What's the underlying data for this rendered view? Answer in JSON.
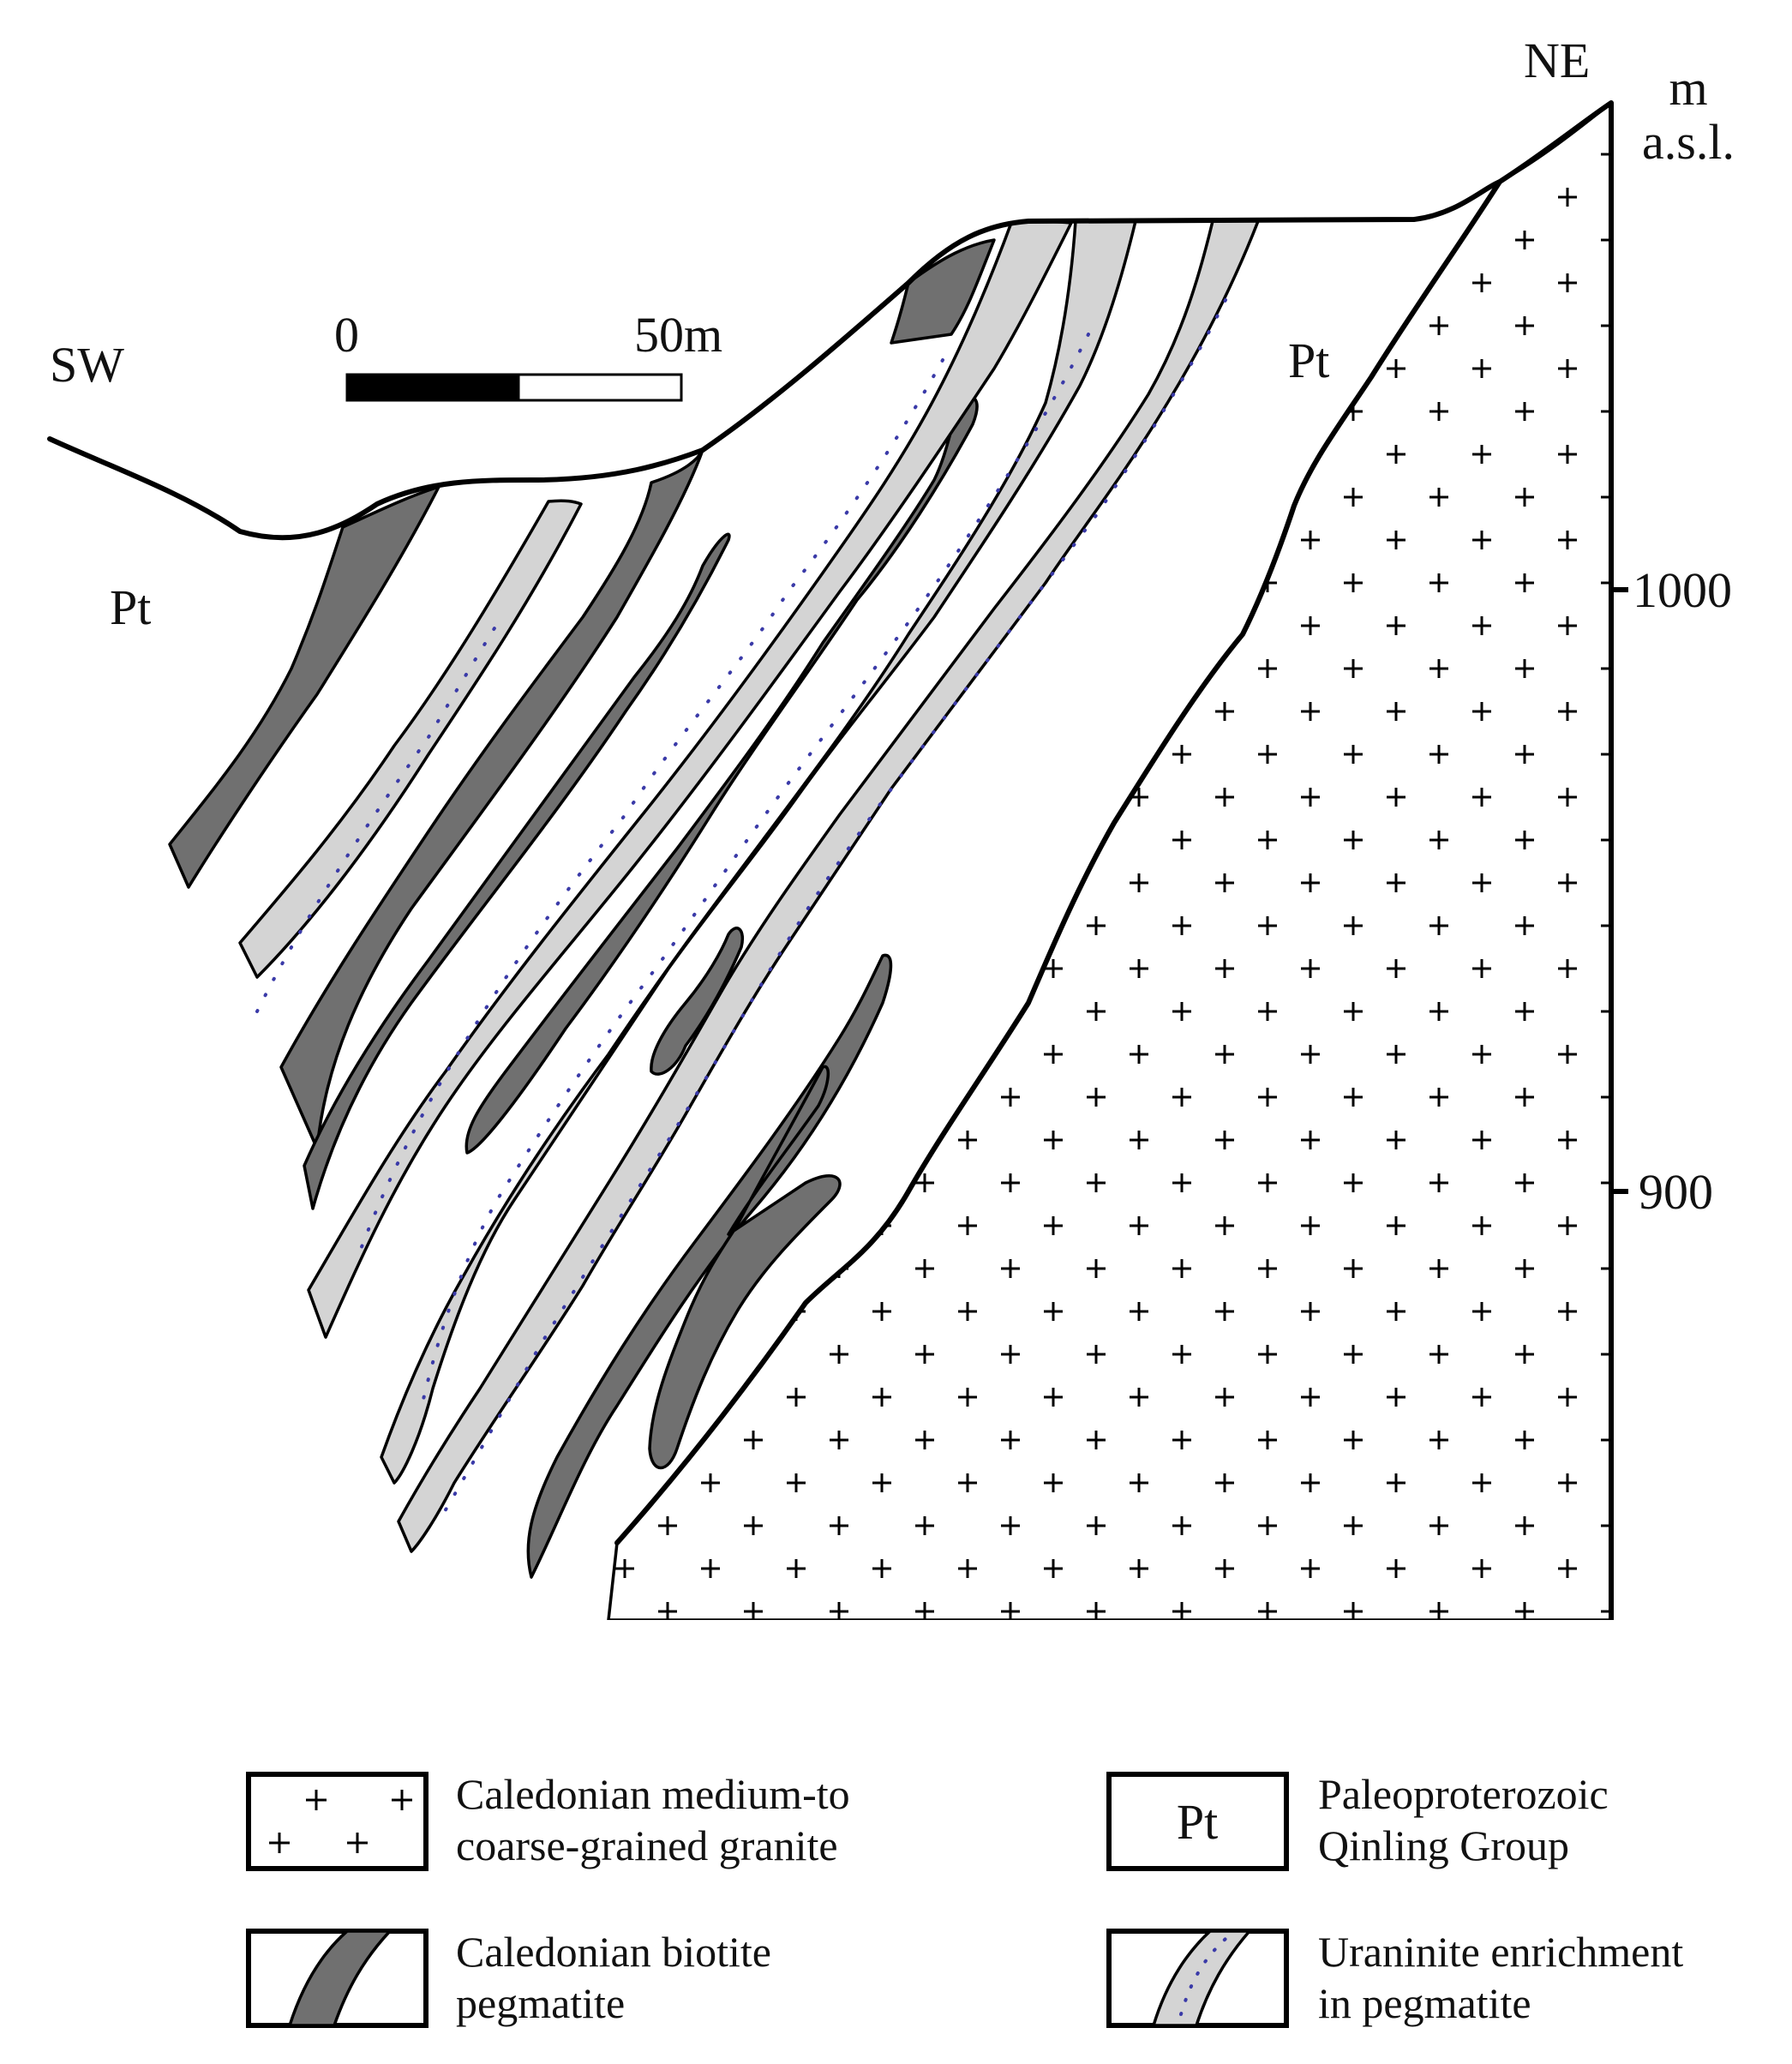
{
  "section": {
    "sw_label": "SW",
    "ne_label": "NE",
    "pt_label_left": "Pt",
    "pt_label_right": "Pt"
  },
  "scale_bar": {
    "start_label": "0",
    "end_label": "50m"
  },
  "elevation_axis": {
    "unit_line1": "m",
    "unit_line2": "a.s.l.",
    "ticks": [
      "1000",
      "900"
    ]
  },
  "legend": {
    "granite": {
      "symbol": "+ +",
      "line1": "Caledonian medium-to",
      "line2": "coarse-grained granite"
    },
    "qinling": {
      "symbol": "Pt",
      "line1": "Paleoproterozoic",
      "line2": "Qinling Group"
    },
    "pegmatite": {
      "line1": "Caledonian biotite",
      "line2": "pegmatite"
    },
    "uraninite": {
      "line1": "Uraninite enrichment",
      "line2": "in pegmatite"
    }
  },
  "colors": {
    "pegmatite_fill": "#707070",
    "uraninite_fill": "#d4d4d4",
    "uraninite_dots": "#3a3aa8",
    "line": "#000000"
  }
}
